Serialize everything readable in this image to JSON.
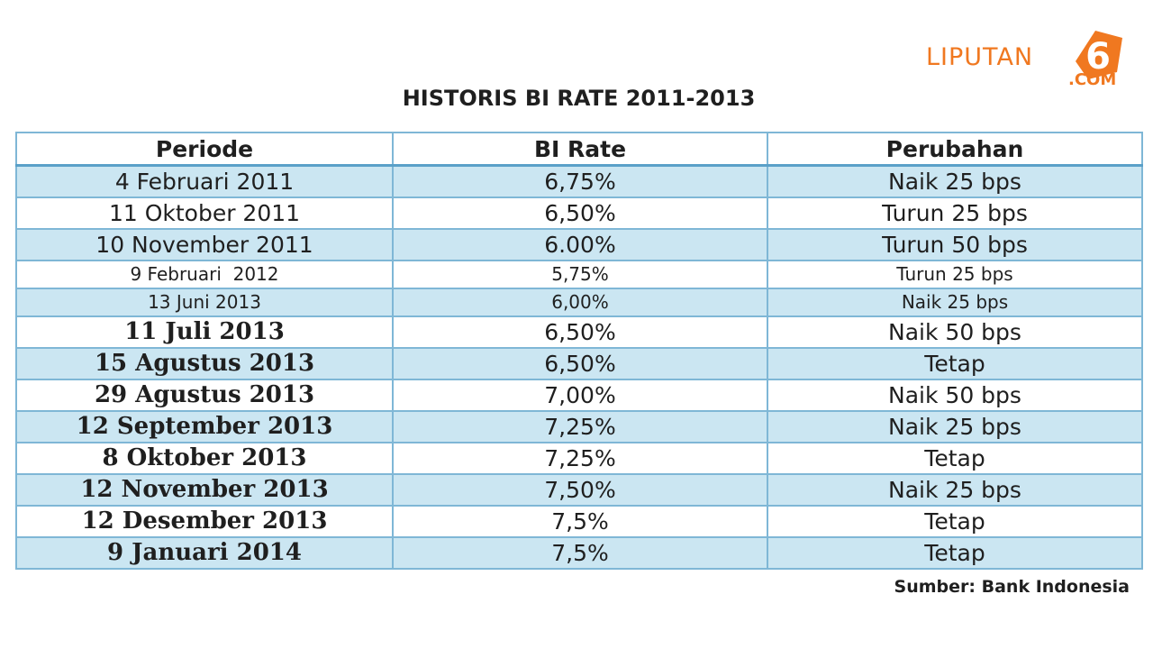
{
  "logo": {
    "text": "LIPUTAN",
    "number": "6",
    "domain": ".COM",
    "color": "#f07820"
  },
  "title": "HISTORIS BI RATE 2011-2013",
  "table": {
    "headers": [
      "Periode",
      "BI Rate",
      "Perubahan"
    ],
    "rows": [
      {
        "periode": "4 Februari 2011",
        "rate": "6,75%",
        "perubahan": "Naik 25 bps"
      },
      {
        "periode": "11 Oktober 2011",
        "rate": "6,50%",
        "perubahan": "Turun 25 bps"
      },
      {
        "periode": "10 November 2011",
        "rate": "6.00%",
        "perubahan": "Turun 50 bps"
      },
      {
        "periode": "9 Februari  2012",
        "rate": "5,75%",
        "perubahan": "Turun 25 bps"
      },
      {
        "periode": "13 Juni 2013",
        "rate": "6,00%",
        "perubahan": "Naik 25 bps"
      },
      {
        "periode": "11 Juli 2013",
        "rate": "6,50%",
        "perubahan": "Naik 50 bps"
      },
      {
        "periode": "15 Agustus 2013",
        "rate": "6,50%",
        "perubahan": "Tetap"
      },
      {
        "periode": "29 Agustus 2013",
        "rate": "7,00%",
        "perubahan": "Naik 50 bps"
      },
      {
        "periode": "12 September 2013",
        "rate": "7,25%",
        "perubahan": "Naik 25 bps"
      },
      {
        "periode": "8 Oktober 2013",
        "rate": "7,25%",
        "perubahan": "Tetap"
      },
      {
        "periode": "12 November 2013",
        "rate": "7,50%",
        "perubahan": "Naik 25 bps"
      },
      {
        "periode": "12 Desember 2013",
        "rate": "7,5%",
        "perubahan": "Tetap"
      },
      {
        "periode": "9 Januari 2014",
        "rate": "7,5%",
        "perubahan": "Tetap"
      }
    ],
    "colors": {
      "row_blue": "#cbe6f2",
      "row_white": "#ffffff",
      "border": "#7fb7d6"
    }
  },
  "source": "Sumber: Bank Indonesia"
}
